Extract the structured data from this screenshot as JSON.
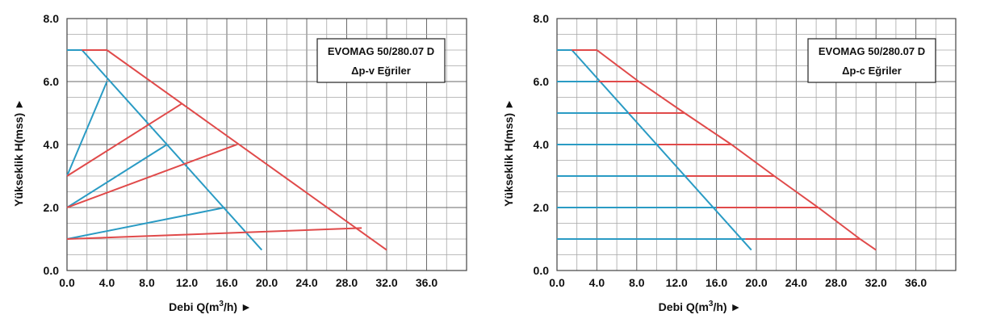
{
  "chart_data": [
    {
      "type": "line",
      "box_title": "EVOMAG 50/280.07 D",
      "box_subtitle": "Δp-v Eğriler",
      "xlabel_prefix": "Debi Q(m",
      "xlabel_sup": "3",
      "xlabel_suffix": "/h) ►",
      "ylabel": "Yükseklik H(mss) ►",
      "xlim": [
        0,
        40
      ],
      "ylim": [
        0,
        8
      ],
      "x_ticks": [
        "0.0",
        "4.0",
        "8.0",
        "12.0",
        "16.0",
        "20.0",
        "24.0",
        "28.0",
        "32.0",
        "36.0"
      ],
      "y_ticks": [
        "0.0",
        "2.0",
        "4.0",
        "6.0",
        "8.0"
      ],
      "grid": true,
      "colors": {
        "blue": "#2a9bc4",
        "red": "#e04a4a"
      },
      "series": [
        {
          "color": "blue",
          "x": [
            0,
            1.5,
            19.5
          ],
          "y": [
            7,
            7,
            0.65
          ]
        },
        {
          "color": "red",
          "x": [
            1.5,
            4.0,
            32.0
          ],
          "y": [
            7,
            7,
            0.65
          ]
        },
        {
          "color": "blue",
          "x": [
            0,
            4.0
          ],
          "y": [
            3,
            6
          ]
        },
        {
          "color": "red",
          "x": [
            0,
            11.5
          ],
          "y": [
            3,
            5.3
          ]
        },
        {
          "color": "blue",
          "x": [
            0,
            10.0
          ],
          "y": [
            2,
            4
          ]
        },
        {
          "color": "red",
          "x": [
            0,
            17.0
          ],
          "y": [
            2,
            4
          ]
        },
        {
          "color": "blue",
          "x": [
            0,
            15.8
          ],
          "y": [
            1,
            2
          ]
        },
        {
          "color": "red",
          "x": [
            0,
            29.5
          ],
          "y": [
            1,
            1.35
          ]
        }
      ]
    },
    {
      "type": "line",
      "box_title": "EVOMAG 50/280.07 D",
      "box_subtitle": "Δp-c Eğriler",
      "xlabel_prefix": "Debi Q(m",
      "xlabel_sup": "3",
      "xlabel_suffix": "/h) ►",
      "ylabel": "Yükseklik H(mss) ►",
      "xlim": [
        0,
        40
      ],
      "ylim": [
        0,
        8
      ],
      "x_ticks": [
        "0.0",
        "4.0",
        "8.0",
        "12.0",
        "16.0",
        "20.0",
        "24.0",
        "28.0",
        "32.0",
        "36.0"
      ],
      "y_ticks": [
        "0.0",
        "2.0",
        "4.0",
        "6.0",
        "8.0"
      ],
      "grid": true,
      "colors": {
        "blue": "#2a9bc4",
        "red": "#e04a4a"
      },
      "series": [
        {
          "color": "blue",
          "x": [
            0,
            1.5,
            19.5
          ],
          "y": [
            7,
            7,
            0.65
          ]
        },
        {
          "color": "red",
          "x": [
            1.5,
            4.0,
            8.2,
            12.8,
            17.5,
            21.8,
            26.2,
            30.4,
            32.0
          ],
          "y": [
            7,
            7,
            6,
            5,
            4,
            3,
            2,
            1,
            0.65
          ]
        },
        {
          "color": "blue",
          "x": [
            0,
            4.2
          ],
          "y": [
            6,
            6
          ]
        },
        {
          "color": "red",
          "x": [
            4.2,
            8.2
          ],
          "y": [
            6,
            6
          ]
        },
        {
          "color": "blue",
          "x": [
            0,
            7.2
          ],
          "y": [
            5,
            5
          ]
        },
        {
          "color": "red",
          "x": [
            7.2,
            12.8
          ],
          "y": [
            5,
            5
          ]
        },
        {
          "color": "blue",
          "x": [
            0,
            10.2
          ],
          "y": [
            4,
            4
          ]
        },
        {
          "color": "red",
          "x": [
            10.2,
            17.5
          ],
          "y": [
            4,
            4
          ]
        },
        {
          "color": "blue",
          "x": [
            0,
            13.0
          ],
          "y": [
            3,
            3
          ]
        },
        {
          "color": "red",
          "x": [
            13.0,
            21.8
          ],
          "y": [
            3,
            3
          ]
        },
        {
          "color": "blue",
          "x": [
            0,
            16.0
          ],
          "y": [
            2,
            2
          ]
        },
        {
          "color": "red",
          "x": [
            16.0,
            26.2
          ],
          "y": [
            2,
            2
          ]
        },
        {
          "color": "blue",
          "x": [
            0,
            18.9
          ],
          "y": [
            1,
            1
          ]
        },
        {
          "color": "red",
          "x": [
            18.9,
            30.4
          ],
          "y": [
            1,
            1
          ]
        }
      ]
    }
  ]
}
